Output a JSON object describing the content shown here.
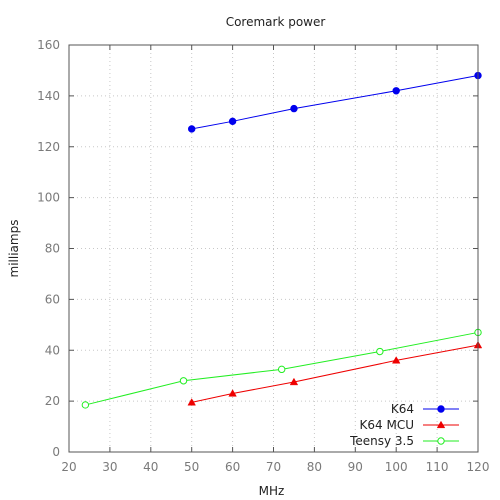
{
  "chart_data": {
    "type": "line",
    "title": "Coremark power",
    "xlabel": "MHz",
    "ylabel": "milliamps",
    "xlim": [
      20,
      120
    ],
    "ylim": [
      0,
      160
    ],
    "xticks": [
      20,
      30,
      40,
      50,
      60,
      70,
      80,
      90,
      100,
      110,
      120
    ],
    "yticks": [
      0,
      20,
      40,
      60,
      80,
      100,
      120,
      140,
      160
    ],
    "grid": true,
    "legend": "bottom-right",
    "series": [
      {
        "name": "K64",
        "color": "#0000ee",
        "marker": "filled-circle",
        "x": [
          50,
          60,
          75,
          100,
          120
        ],
        "y": [
          127,
          130,
          135,
          142,
          148
        ]
      },
      {
        "name": "K64 MCU",
        "color": "#ee0000",
        "marker": "filled-triangle",
        "x": [
          50,
          60,
          75,
          100,
          120
        ],
        "y": [
          19.5,
          23,
          27.5,
          36,
          42
        ]
      },
      {
        "name": "Teensy 3.5",
        "color": "#22ee22",
        "marker": "open-circle",
        "x": [
          24,
          48,
          72,
          96,
          120
        ],
        "y": [
          18.5,
          28,
          32.5,
          39.5,
          47
        ]
      }
    ]
  }
}
